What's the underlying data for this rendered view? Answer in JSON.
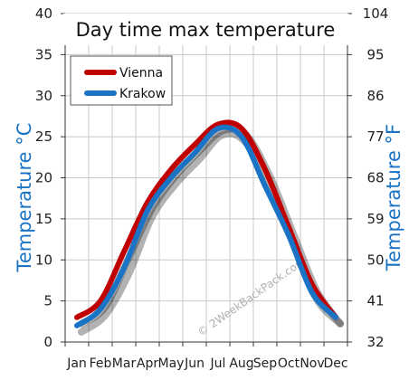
{
  "chart_data": {
    "type": "line",
    "title": "Day time max temperature",
    "categories": [
      "Jan",
      "Feb",
      "Mar",
      "Apr",
      "May",
      "Jun",
      "Jul",
      "Aug",
      "Sep",
      "Oct",
      "Nov",
      "Dec"
    ],
    "series": [
      {
        "name": "Vienna",
        "color": "#c00000",
        "values": [
          3,
          5,
          11,
          17,
          21,
          24,
          26.5,
          26,
          21,
          14,
          7,
          3
        ]
      },
      {
        "name": "Krakow",
        "color": "#1a73c4",
        "values": [
          2,
          4,
          9,
          16,
          20,
          23,
          26,
          25,
          19,
          13,
          6,
          3
        ]
      }
    ],
    "ylabel_left": "Temperature °C",
    "ylabel_right": "Temperature °F",
    "ylim": [
      0,
      40
    ],
    "yticks_left": [
      "0",
      "5",
      "10",
      "15",
      "20",
      "25",
      "30",
      "35",
      "40"
    ],
    "yticks_right": [
      "32",
      "41",
      "50",
      "59",
      "68",
      "77",
      "86",
      "95",
      "104"
    ],
    "grid": true,
    "legend_position": "top-left",
    "watermark": "© 2WeekBackPack.com"
  }
}
